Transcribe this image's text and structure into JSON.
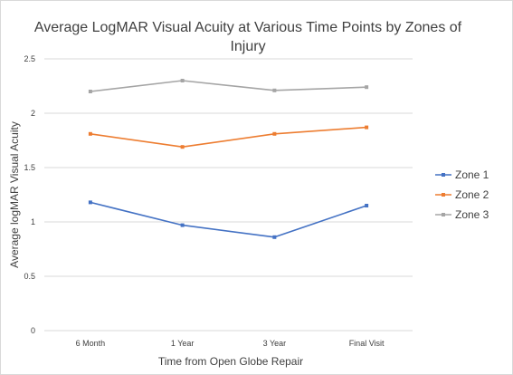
{
  "chart_data": {
    "type": "line",
    "title_lines": [
      "Average LogMAR Visual Acuity at Various Time Points by Zones of",
      "Injury"
    ],
    "xlabel": "Time from Open Globe Repair",
    "ylabel": "Average logMAR Visual Acuity",
    "categories": [
      "6 Month",
      "1 Year",
      "3 Year",
      "Final Visit"
    ],
    "y_ticks": [
      "0",
      "0.5",
      "1",
      "1.5",
      "2",
      "2.5"
    ],
    "ylim": [
      0,
      2.5
    ],
    "grid": "horizontal",
    "legend_position": "right",
    "series": [
      {
        "name": "Zone 1",
        "color": "#4472c4",
        "values": [
          1.18,
          0.97,
          0.86,
          1.15
        ]
      },
      {
        "name": "Zone 2",
        "color": "#ed7d31",
        "values": [
          1.81,
          1.69,
          1.81,
          1.87
        ]
      },
      {
        "name": "Zone 3",
        "color": "#a5a5a5",
        "values": [
          2.2,
          2.3,
          2.21,
          2.24
        ]
      }
    ]
  }
}
